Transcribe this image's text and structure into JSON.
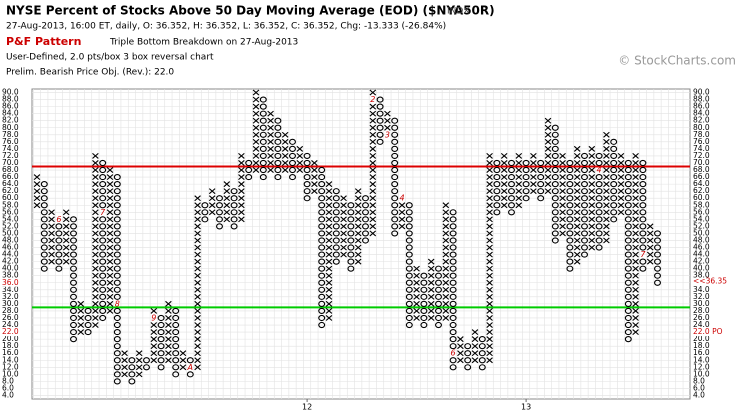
{
  "chart_data": {
    "type": "pnf",
    "title": "NYSE Percent of Stocks Above 50 Day Moving Average (EOD) ($NYA50R)",
    "exchange": "INDX",
    "quote_line": "27-Aug-2013, 16:00 ET, daily, O: 36.352, H: 36.352, L: 36.352, C: 36.352, Chg: -13.333 (-26.84%)",
    "pattern_label": "P&F Pattern",
    "pattern": "Triple Bottom Breakdown on 27-Aug-2013",
    "settings_line": "User-Defined, 2.0 pts/box 3 box reversal chart",
    "objective_line": "Prelim. Bearish Price Obj. (Rev.): 22.0",
    "watermark": "© StockCharts.com",
    "box_size": 2,
    "first_column_type": "X",
    "x_color": "#000000",
    "o_color": "#000000",
    "month_color": "#cc0000",
    "columns": [
      [
        58,
        66
      ],
      [
        40,
        64
      ],
      [
        42,
        56
      ],
      [
        40,
        54
      ],
      [
        42,
        56
      ],
      [
        20,
        54
      ],
      [
        22,
        30
      ],
      [
        22,
        28
      ],
      [
        24,
        72
      ],
      [
        26,
        70
      ],
      [
        28,
        68
      ],
      [
        8,
        66
      ],
      [
        10,
        16
      ],
      [
        8,
        14
      ],
      [
        10,
        16
      ],
      [
        12,
        14
      ],
      [
        14,
        28
      ],
      [
        12,
        26
      ],
      [
        14,
        30
      ],
      [
        10,
        28
      ],
      [
        12,
        16
      ],
      [
        10,
        14
      ],
      [
        12,
        60
      ],
      [
        54,
        58
      ],
      [
        56,
        62
      ],
      [
        52,
        60
      ],
      [
        54,
        64
      ],
      [
        52,
        62
      ],
      [
        54,
        72
      ],
      [
        66,
        70
      ],
      [
        68,
        90
      ],
      [
        66,
        88
      ],
      [
        68,
        84
      ],
      [
        66,
        82
      ],
      [
        68,
        78
      ],
      [
        66,
        76
      ],
      [
        68,
        74
      ],
      [
        60,
        72
      ],
      [
        62,
        70
      ],
      [
        24,
        68
      ],
      [
        26,
        64
      ],
      [
        42,
        62
      ],
      [
        44,
        60
      ],
      [
        40,
        58
      ],
      [
        42,
        62
      ],
      [
        48,
        60
      ],
      [
        50,
        90
      ],
      [
        76,
        88
      ],
      [
        78,
        84
      ],
      [
        50,
        82
      ],
      [
        52,
        60
      ],
      [
        24,
        58
      ],
      [
        26,
        40
      ],
      [
        24,
        38
      ],
      [
        26,
        42
      ],
      [
        24,
        40
      ],
      [
        26,
        58
      ],
      [
        12,
        56
      ],
      [
        14,
        20
      ],
      [
        12,
        18
      ],
      [
        14,
        22
      ],
      [
        12,
        20
      ],
      [
        14,
        72
      ],
      [
        56,
        70
      ],
      [
        58,
        72
      ],
      [
        56,
        70
      ],
      [
        58,
        72
      ],
      [
        60,
        70
      ],
      [
        62,
        72
      ],
      [
        60,
        70
      ],
      [
        62,
        82
      ],
      [
        48,
        80
      ],
      [
        50,
        72
      ],
      [
        40,
        70
      ],
      [
        42,
        74
      ],
      [
        44,
        72
      ],
      [
        46,
        74
      ],
      [
        46,
        72
      ],
      [
        48,
        78
      ],
      [
        54,
        76
      ],
      [
        56,
        72
      ],
      [
        20,
        70
      ],
      [
        22,
        72
      ],
      [
        40,
        70
      ],
      [
        42,
        52
      ],
      [
        36,
        50
      ]
    ],
    "month_markers": [
      {
        "column": 3,
        "value": 54,
        "label": "6"
      },
      {
        "column": 9,
        "value": 56,
        "label": "7"
      },
      {
        "column": 11,
        "value": 30,
        "label": "8"
      },
      {
        "column": 16,
        "value": 26,
        "label": "9"
      },
      {
        "column": 21,
        "value": 12,
        "label": "A"
      },
      {
        "column": 46,
        "value": 88,
        "label": "2"
      },
      {
        "column": 48,
        "value": 78,
        "label": "3"
      },
      {
        "column": 50,
        "value": 60,
        "label": "4"
      },
      {
        "column": 54,
        "value": 56,
        "label": "5"
      },
      {
        "column": 57,
        "value": 16,
        "label": "6"
      },
      {
        "column": 77,
        "value": 68,
        "label": "4"
      },
      {
        "column": 83,
        "value": 44,
        "label": "7"
      },
      {
        "column": 84,
        "value": 62,
        "label": "8"
      }
    ],
    "x_labels": [
      {
        "column": 37,
        "label": "12"
      },
      {
        "column": 67,
        "label": "13"
      }
    ],
    "reference_lines": [
      {
        "value": 69,
        "color": "#dd0000"
      },
      {
        "value": 29,
        "color": "#00cc00"
      }
    ],
    "left_markers": [
      {
        "value": 36,
        "label": "36.0"
      },
      {
        "value": 22,
        "label": "22.0"
      }
    ],
    "right_markers": [
      {
        "value": 36.35,
        "label": "<<36.35"
      },
      {
        "value": 22,
        "label": "22.0 PO"
      }
    ],
    "ylim": [
      3,
      91
    ],
    "yticks": [
      {
        "value": 4,
        "label": "4.0"
      },
      {
        "value": 6,
        "label": "6.0"
      },
      {
        "value": 8,
        "label": "8.0"
      },
      {
        "value": 10,
        "label": "10.0"
      },
      {
        "value": 12,
        "label": "12.0"
      },
      {
        "value": 14,
        "label": "14.0"
      },
      {
        "value": 16,
        "label": "16.0"
      },
      {
        "value": 18,
        "label": "18.0"
      },
      {
        "value": 20,
        "label": "20.0"
      },
      {
        "value": 22,
        "label": "22.0"
      },
      {
        "value": 24,
        "label": "24.0"
      },
      {
        "value": 26,
        "label": "26.0"
      },
      {
        "value": 28,
        "label": "28.0"
      },
      {
        "value": 30,
        "label": "30.0"
      },
      {
        "value": 32,
        "label": "32.0"
      },
      {
        "value": 34,
        "label": "34.0"
      },
      {
        "value": 36,
        "label": "36.0"
      },
      {
        "value": 38,
        "label": "38.0"
      },
      {
        "value": 40,
        "label": "40.0"
      },
      {
        "value": 42,
        "label": "42.0"
      },
      {
        "value": 44,
        "label": "44.0"
      },
      {
        "value": 46,
        "label": "46.0"
      },
      {
        "value": 48,
        "label": "48.0"
      },
      {
        "value": 50,
        "label": "50.0"
      },
      {
        "value": 52,
        "label": "52.0"
      },
      {
        "value": 54,
        "label": "54.0"
      },
      {
        "value": 56,
        "label": "56.0"
      },
      {
        "value": 58,
        "label": "58.0"
      },
      {
        "value": 60,
        "label": "60.0"
      },
      {
        "value": 62,
        "label": "62.0"
      },
      {
        "value": 64,
        "label": "64.0"
      },
      {
        "value": 66,
        "label": "66.0"
      },
      {
        "value": 68,
        "label": "68.0"
      },
      {
        "value": 70,
        "label": "70.0"
      },
      {
        "value": 72,
        "label": "72.0"
      },
      {
        "value": 74,
        "label": "74.0"
      },
      {
        "value": 76,
        "label": "76.0"
      },
      {
        "value": 78,
        "label": "78.0"
      },
      {
        "value": 80,
        "label": "80.0"
      },
      {
        "value": 82,
        "label": "82.0"
      },
      {
        "value": 84,
        "label": "84.0"
      },
      {
        "value": 86,
        "label": "86.0"
      },
      {
        "value": 88,
        "label": "88.0"
      },
      {
        "value": 90,
        "label": "90.0"
      }
    ],
    "grid": true
  }
}
